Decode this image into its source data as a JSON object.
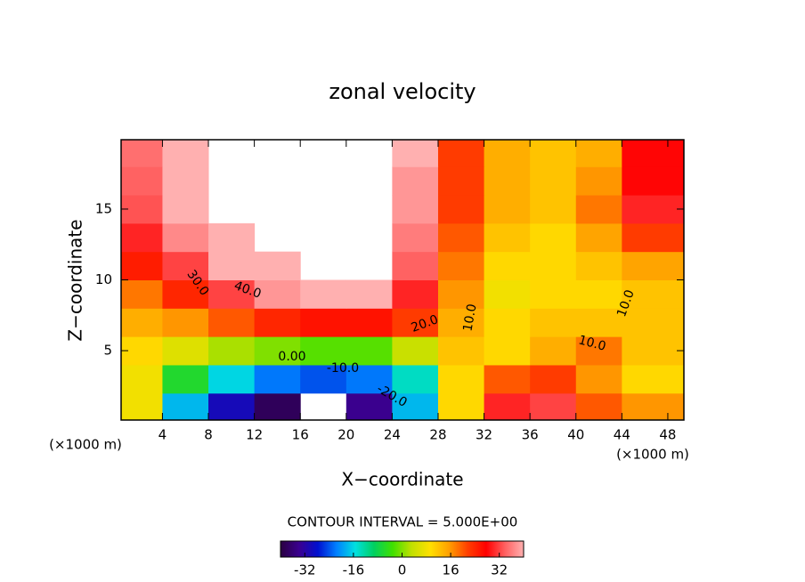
{
  "chart_data": {
    "type": "heatmap",
    "title": "zonal velocity",
    "x_label": "X−coordinate",
    "y_label": "Z−coordinate",
    "x_unit_left": "(×1000 m)",
    "x_unit_right": "(×1000 m)",
    "footnote": "CONTOUR INTERVAL = 5.000E+00",
    "x": [
      2,
      6,
      10,
      14,
      18,
      22,
      26,
      30,
      34,
      38,
      42,
      46
    ],
    "y": [
      1,
      3,
      5,
      7,
      9,
      11,
      13,
      15,
      17,
      19
    ],
    "z": [
      [
        8,
        -18,
        -30,
        -38,
        null,
        -34,
        -18,
        10,
        30,
        32,
        20,
        16
      ],
      [
        8,
        -6,
        -16,
        -22,
        -24,
        -22,
        -14,
        10,
        20,
        22,
        16,
        10
      ],
      [
        10,
        6,
        2,
        0,
        -2,
        -2,
        4,
        12,
        10,
        14,
        18,
        12
      ],
      [
        14,
        16,
        20,
        24,
        26,
        26,
        22,
        14,
        10,
        12,
        12,
        12
      ],
      [
        18,
        24,
        32,
        38,
        42,
        42,
        30,
        16,
        8,
        10,
        10,
        12
      ],
      [
        25,
        32,
        40,
        44,
        null,
        null,
        34,
        18,
        10,
        10,
        12,
        15
      ],
      [
        30,
        37,
        44,
        null,
        null,
        null,
        36,
        20,
        12,
        10,
        15,
        22
      ],
      [
        33,
        40,
        null,
        null,
        null,
        null,
        38,
        22,
        14,
        12,
        18,
        30
      ],
      [
        34,
        42,
        null,
        null,
        null,
        null,
        38,
        22,
        14,
        12,
        16,
        28
      ],
      [
        35,
        42,
        null,
        null,
        null,
        null,
        40,
        22,
        14,
        12,
        14,
        28
      ]
    ],
    "xlim": [
      0.4,
      49.4
    ],
    "ylim": [
      0.1,
      19.9
    ],
    "xticks": [
      4,
      8,
      12,
      16,
      20,
      24,
      28,
      32,
      36,
      40,
      44,
      48
    ],
    "yticks": [
      5,
      10,
      15
    ],
    "clim": [
      -40,
      40
    ],
    "cticks": [
      -32,
      -16,
      0,
      16,
      32
    ],
    "colormap": [
      "#2a0040",
      "#3a0090",
      "#0010d0",
      "#0080ff",
      "#00e0e0",
      "#00d060",
      "#40e000",
      "#c0e000",
      "#ffe000",
      "#ffa000",
      "#ff4000",
      "#ff0000",
      "#ff6060",
      "#ffb0b0"
    ],
    "contour_labels": [
      "30.0",
      "40.0",
      "20.0",
      "10.0",
      "0.00",
      "-10.0",
      "-20.0",
      "10.0",
      "10.0"
    ]
  }
}
